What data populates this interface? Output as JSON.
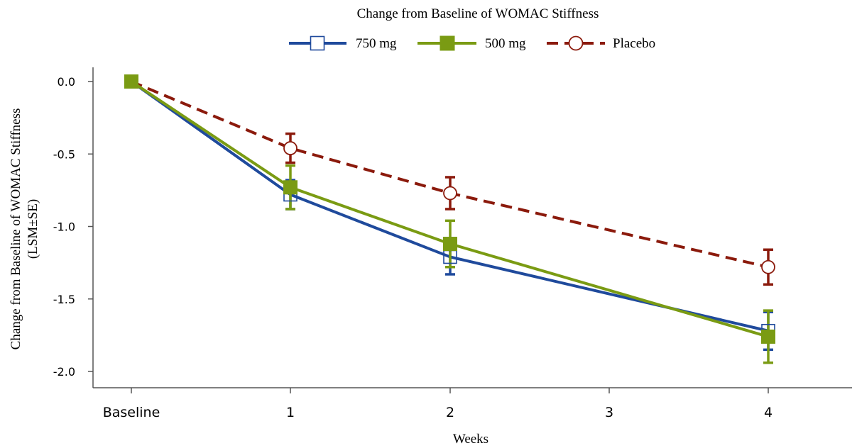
{
  "chart_data": {
    "type": "line",
    "title": "Change from Baseline of WOMAC Stiffness",
    "xlabel": "Weeks",
    "ylabel_lines": [
      "Change from Baseline of WOMAC Stiffness",
      "(LSM±SE)"
    ],
    "categories": [
      "Baseline",
      "1",
      "2",
      "3",
      "4"
    ],
    "y_ticks": [
      0.0,
      -0.5,
      -1.0,
      -1.5,
      -2.0
    ],
    "y_tick_labels": [
      "0.0",
      "-0.5",
      "-1.0",
      "-1.5",
      "-2.0"
    ],
    "ylim": [
      -2.1,
      0.1
    ],
    "legend_position": "top",
    "grid": false,
    "series": [
      {
        "name": "750 mg",
        "color": "#1f4a9c",
        "marker": "open-square",
        "dash": "solid",
        "x": [
          "Baseline",
          "1",
          "2",
          "4"
        ],
        "values": [
          0.0,
          -0.78,
          -1.21,
          -1.72
        ],
        "se": [
          0.0,
          0.1,
          0.12,
          0.13
        ]
      },
      {
        "name": "500 mg",
        "color": "#7a9b13",
        "marker": "filled-square",
        "dash": "solid",
        "x": [
          "Baseline",
          "1",
          "2",
          "4"
        ],
        "values": [
          0.0,
          -0.73,
          -1.12,
          -1.76
        ],
        "se": [
          0.0,
          0.15,
          0.16,
          0.18
        ]
      },
      {
        "name": "Placebo",
        "color": "#8b1a0c",
        "marker": "open-circle",
        "dash": "dashed",
        "x": [
          "Baseline",
          "1",
          "2",
          "4"
        ],
        "values": [
          0.0,
          -0.46,
          -0.77,
          -1.28
        ],
        "se": [
          0.0,
          0.1,
          0.11,
          0.12
        ]
      }
    ]
  }
}
